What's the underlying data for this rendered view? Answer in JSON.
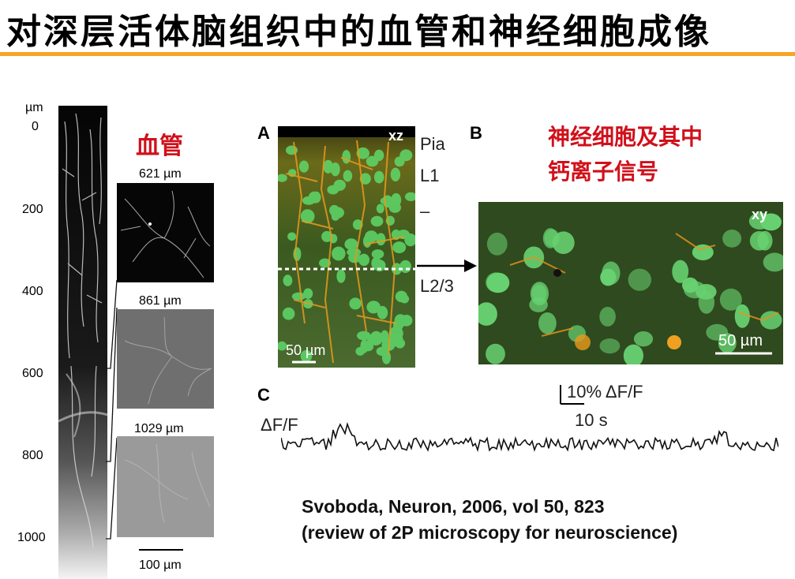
{
  "title": "对深层活体脑组织中的血管和神经细胞成像",
  "vessels": {
    "heading": "血管",
    "depth_unit": "µm",
    "depth_ticks": [
      "0",
      "200",
      "400",
      "600",
      "800",
      "1000"
    ],
    "slices": [
      {
        "depth": "621 µm"
      },
      {
        "depth": "861 µm"
      },
      {
        "depth": "1029 µm"
      }
    ],
    "scale_bar": "100 µm"
  },
  "neurons": {
    "heading_line1": "神经细胞及其中",
    "heading_line2": "钙离子信号",
    "panel_a": {
      "letter": "A",
      "view": "xz",
      "scale": "50 µm",
      "layers": [
        "Pia",
        "L1",
        "–",
        "L2/3"
      ]
    },
    "panel_b": {
      "letter": "B",
      "view": "xy",
      "scale": "50 µm"
    },
    "panel_c": {
      "letter": "C",
      "trace_label": "ΔF/F",
      "scale_y": "10% ΔF/F",
      "scale_x": "10 s"
    }
  },
  "citation": {
    "line1": "Svoboda, Neuron, 2006, vol 50, 823",
    "line2": "(review of 2P microscopy for neuroscience)"
  },
  "colors": {
    "accent_rule": "#f5a623",
    "red_text": "#d0101b",
    "cell_green": "#5fd86a",
    "vessel_orange": "#e89a1c"
  }
}
